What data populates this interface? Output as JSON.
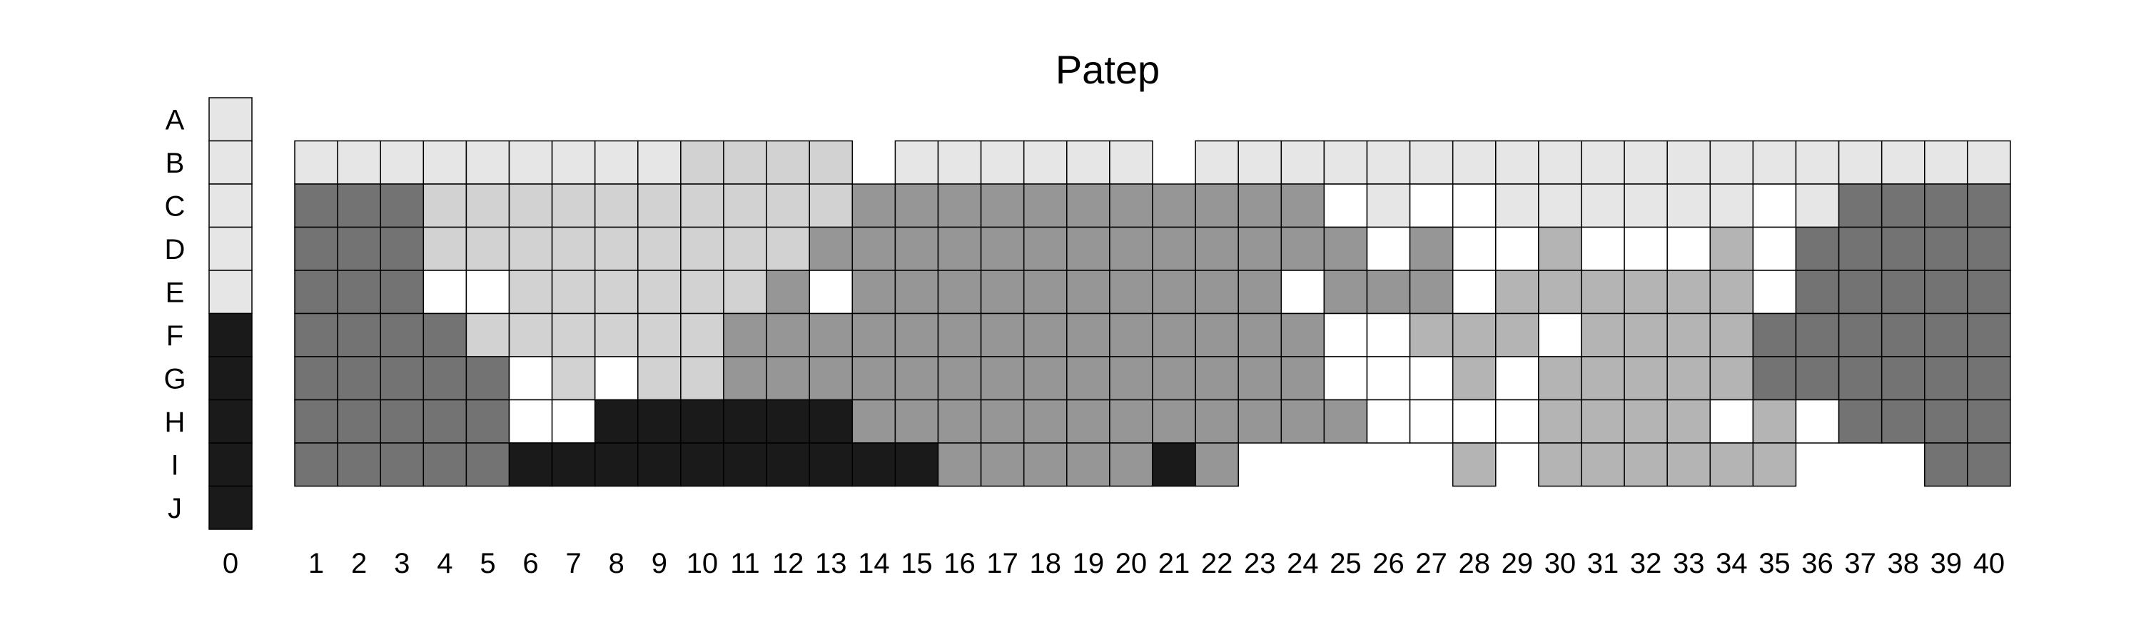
{
  "chart_data": {
    "type": "heatmap",
    "title": "Patep",
    "rows": [
      "A",
      "B",
      "C",
      "D",
      "E",
      "F",
      "G",
      "H",
      "I",
      "J"
    ],
    "key_column": {
      "label": "0",
      "values": [
        "light",
        "light",
        "light",
        "light",
        "light",
        "black",
        "black",
        "black",
        "black",
        "black"
      ]
    },
    "columns": [
      "1",
      "2",
      "3",
      "4",
      "5",
      "6",
      "7",
      "8",
      "9",
      "10",
      "11",
      "12",
      "13",
      "14",
      "15",
      "16",
      "17",
      "18",
      "19",
      "20",
      "21",
      "22",
      "23",
      "24",
      "25",
      "26",
      "27",
      "28",
      "29",
      "30",
      "31",
      "32",
      "33",
      "34",
      "35",
      "36",
      "37",
      "38",
      "39",
      "40"
    ],
    "cell_rows": [
      "B",
      "C",
      "D",
      "E",
      "F",
      "G",
      "H",
      "I"
    ],
    "legend_colors": {
      "L": "#e6e6e6",
      "M": "#d2d2d2",
      "S": "#b4b4b4",
      "G": "#969696",
      "D": "#737373",
      "K": "#1a1a1a",
      "W": "#ffffff",
      "light": "#e6e6e6",
      "black": "#1a1a1a"
    },
    "cells": {
      "B": [
        "L",
        "L",
        "L",
        "L",
        "L",
        "L",
        "L",
        "L",
        "L",
        "M",
        "M",
        "M",
        "M",
        "_",
        "L",
        "L",
        "L",
        "L",
        "L",
        "L",
        "_",
        "L",
        "L",
        "L",
        "L",
        "L",
        "L",
        "L",
        "L",
        "L",
        "L",
        "L",
        "L",
        "L",
        "L",
        "L",
        "L",
        "L",
        "L",
        "L"
      ],
      "C": [
        "D",
        "D",
        "D",
        "M",
        "M",
        "M",
        "M",
        "M",
        "M",
        "M",
        "M",
        "M",
        "M",
        "G",
        "G",
        "G",
        "G",
        "G",
        "G",
        "G",
        "G",
        "G",
        "G",
        "G",
        "W",
        "L",
        "W",
        "W",
        "L",
        "L",
        "L",
        "L",
        "L",
        "L",
        "W",
        "L",
        "D",
        "D",
        "D",
        "D"
      ],
      "D": [
        "D",
        "D",
        "D",
        "M",
        "M",
        "M",
        "M",
        "M",
        "M",
        "M",
        "M",
        "M",
        "G",
        "G",
        "G",
        "G",
        "G",
        "G",
        "G",
        "G",
        "G",
        "G",
        "G",
        "G",
        "G",
        "W",
        "G",
        "W",
        "W",
        "S",
        "W",
        "W",
        "W",
        "S",
        "W",
        "D",
        "D",
        "D",
        "D",
        "D"
      ],
      "E": [
        "D",
        "D",
        "D",
        "W",
        "W",
        "M",
        "M",
        "M",
        "M",
        "M",
        "M",
        "G",
        "W",
        "G",
        "G",
        "G",
        "G",
        "G",
        "G",
        "G",
        "G",
        "G",
        "G",
        "W",
        "G",
        "G",
        "G",
        "W",
        "S",
        "S",
        "S",
        "S",
        "S",
        "S",
        "W",
        "D",
        "D",
        "D",
        "D",
        "D"
      ],
      "F": [
        "D",
        "D",
        "D",
        "D",
        "M",
        "M",
        "M",
        "M",
        "M",
        "M",
        "G",
        "G",
        "G",
        "G",
        "G",
        "G",
        "G",
        "G",
        "G",
        "G",
        "G",
        "G",
        "G",
        "G",
        "W",
        "W",
        "S",
        "S",
        "S",
        "W",
        "S",
        "S",
        "S",
        "S",
        "D",
        "D",
        "D",
        "D",
        "D",
        "D"
      ],
      "G": [
        "D",
        "D",
        "D",
        "D",
        "D",
        "W",
        "M",
        "W",
        "M",
        "M",
        "G",
        "G",
        "G",
        "G",
        "G",
        "G",
        "G",
        "G",
        "G",
        "G",
        "G",
        "G",
        "G",
        "G",
        "W",
        "W",
        "W",
        "S",
        "W",
        "S",
        "S",
        "S",
        "S",
        "S",
        "D",
        "D",
        "D",
        "D",
        "D",
        "D"
      ],
      "H": [
        "D",
        "D",
        "D",
        "D",
        "D",
        "W",
        "W",
        "K",
        "K",
        "K",
        "K",
        "K",
        "K",
        "G",
        "G",
        "G",
        "G",
        "G",
        "G",
        "G",
        "G",
        "G",
        "G",
        "G",
        "G",
        "W",
        "W",
        "W",
        "W",
        "S",
        "S",
        "S",
        "S",
        "W",
        "S",
        "W",
        "D",
        "D",
        "D",
        "D"
      ],
      "I": [
        "D",
        "D",
        "D",
        "D",
        "D",
        "K",
        "K",
        "K",
        "K",
        "K",
        "K",
        "K",
        "K",
        "K",
        "K",
        "G",
        "G",
        "G",
        "G",
        "G",
        "K",
        "G",
        "_",
        "_",
        "_",
        "_",
        "_",
        "S",
        "_",
        "S",
        "S",
        "S",
        "S",
        "S",
        "S",
        "_",
        "_",
        "_",
        "D",
        "D"
      ]
    }
  }
}
